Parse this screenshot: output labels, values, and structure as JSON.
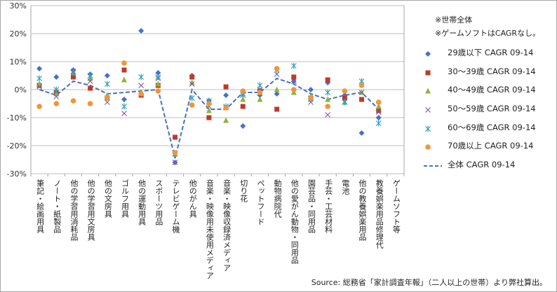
{
  "notes": [
    "※世帯全体",
    "※ゲームソフトはCAGRなし。"
  ],
  "source": "Source: 総務省「家計調査年報」（二人以上の世帯）より弊社算出。",
  "chart_data": {
    "type": "scatter",
    "categories": [
      "筆記・絵画用具",
      "ノート・紙製品",
      "他の学習用消耗品",
      "他の学習用文房具",
      "他の文房具",
      "ゴルフ用具",
      "他の運動用具",
      "スポーツ用品",
      "テレビゲーム機",
      "他のがん具",
      "音楽・映像用未使用メディア",
      "音楽・映像収録済メディア",
      "切り花",
      "ペットフード",
      "動物病院代",
      "他の愛がん動物・同用品",
      "園芸品・同用品",
      "手芸・工芸材料",
      "電池",
      "他の教養娯楽用品",
      "教養娯楽用品修理代",
      "ゲームソフト等"
    ],
    "ylim": [
      -30,
      30
    ],
    "yticks": [
      "-30%",
      "-20%",
      "-10%",
      "0%",
      "10%",
      "20%",
      "30%"
    ],
    "series": [
      {
        "name": "29歳以下 CAGR 09-14",
        "marker": "diamond",
        "color": "#4472c4",
        "values": [
          7.5,
          4.5,
          7,
          5.5,
          5,
          -3.5,
          21,
          6,
          -26,
          5,
          -4,
          -2,
          -13,
          -2,
          -1.5,
          3,
          0,
          2.5,
          -2,
          -15.5,
          -10,
          null
        ]
      },
      {
        "name": "30～39歳 CAGR 09-14",
        "marker": "square",
        "color": "#c0392b",
        "values": [
          1.5,
          -1,
          4.5,
          0.5,
          -3,
          7,
          -2,
          1.5,
          -17,
          4.5,
          -10,
          1,
          -6,
          -0.5,
          -7,
          4.5,
          -3,
          3.5,
          -3,
          -3.5,
          -7.5,
          null
        ]
      },
      {
        "name": "40～49歳 CAGR 09-14",
        "marker": "triangle",
        "color": "#8db33f",
        "values": [
          2,
          -1.5,
          6,
          4,
          -2,
          3.5,
          -1,
          2,
          -23,
          2.5,
          -7.5,
          -11,
          -3.5,
          -3.5,
          0,
          -1,
          -2.5,
          -3.5,
          -4.5,
          -1,
          -6,
          null
        ]
      },
      {
        "name": "50～59歳 CAGR 09-14",
        "marker": "x",
        "color": "#7f5ca8",
        "values": [
          1,
          -2.5,
          6.5,
          3,
          -4.5,
          -8.5,
          1.5,
          4,
          -26,
          2,
          -6,
          -6.5,
          -1.5,
          0,
          5.5,
          3,
          -4.5,
          -9,
          -1.5,
          -1,
          -8,
          null
        ]
      },
      {
        "name": "60～69歳 CAGR 09-14",
        "marker": "star",
        "color": "#2e9fbf",
        "values": [
          4,
          0,
          6,
          5,
          2,
          -6,
          4.5,
          4.5,
          -23,
          -3,
          -4,
          -6,
          -2,
          1.5,
          7,
          8.5,
          -3.5,
          -1,
          -4.5,
          3,
          -12,
          null
        ]
      },
      {
        "name": "70歳以上 CAGR 09-14",
        "marker": "circle",
        "color": "#f0953a",
        "values": [
          -6,
          -5,
          -4,
          -5,
          -3,
          9.5,
          -1.5,
          -0.5,
          -22.5,
          -5.5,
          -5,
          -6.5,
          -0.5,
          -1,
          7.5,
          0,
          -3,
          -6,
          -0.5,
          1.5,
          -4.5,
          null
        ]
      },
      {
        "name": "全体 CAGR 09-14",
        "marker": "dashed-line",
        "color": "#4472c4",
        "values": [
          0,
          -2,
          3,
          1.5,
          -1.5,
          -1,
          -0.5,
          0,
          -24.5,
          0,
          -7,
          -7,
          -1,
          -1,
          4,
          2,
          -1.5,
          -3.5,
          -2,
          -1,
          -7,
          null
        ]
      }
    ]
  }
}
